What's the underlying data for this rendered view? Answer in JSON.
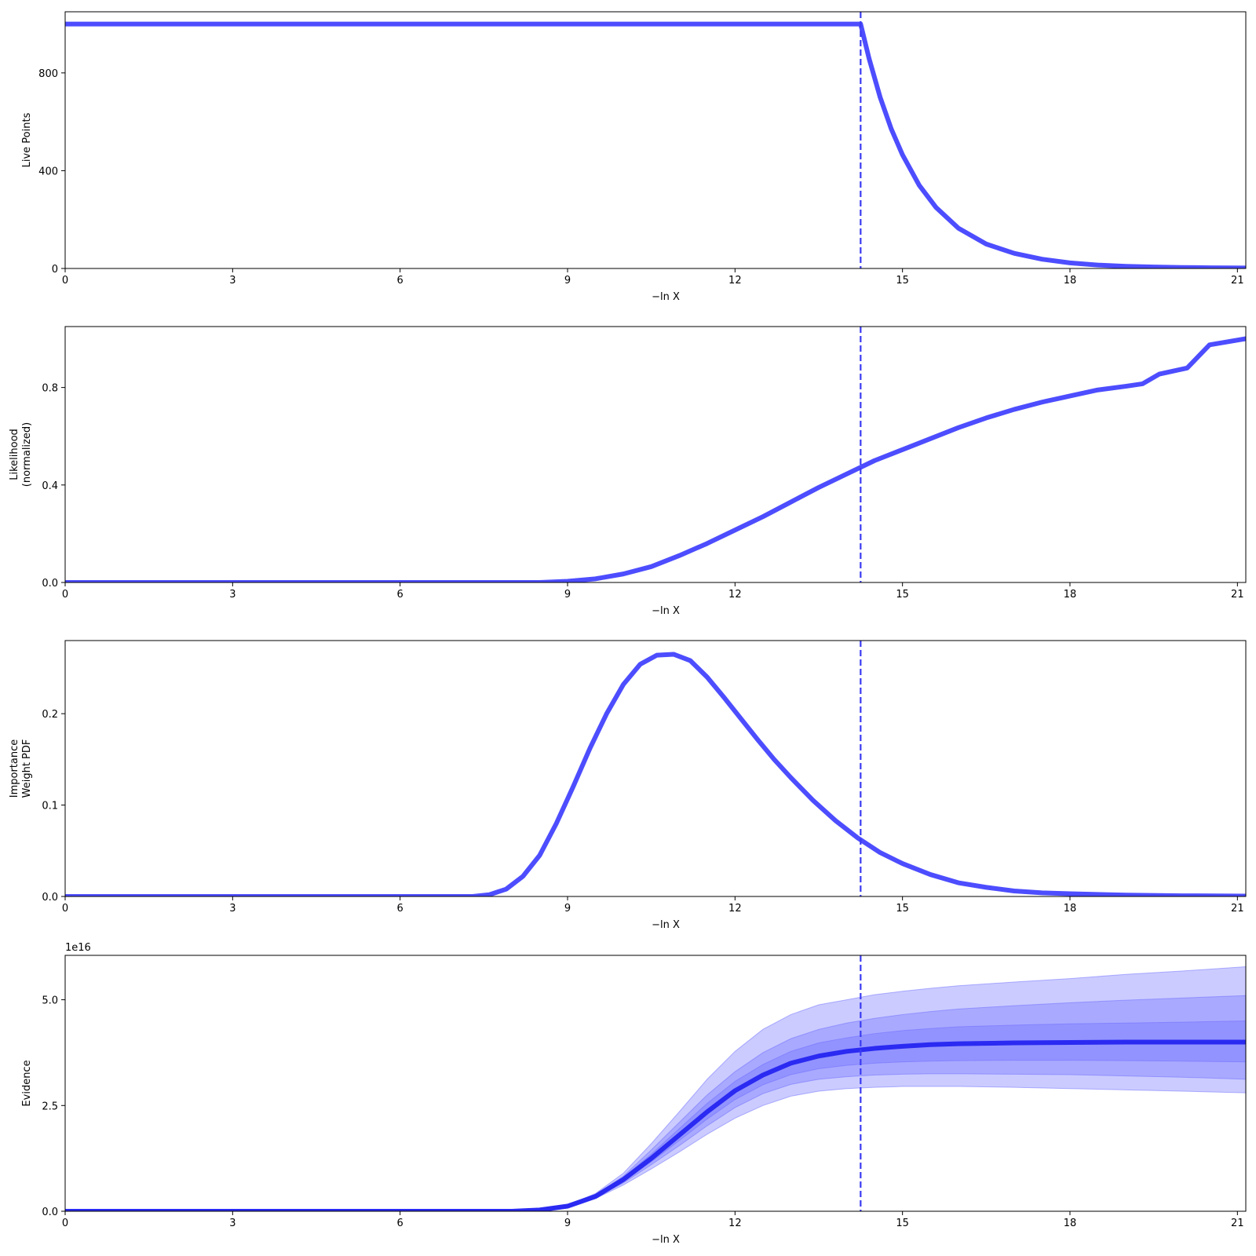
{
  "colors": {
    "line": "#4d4dff",
    "evidence_line": "#2a2af2",
    "band": "#6b6bff",
    "marker": "#3b3bf2",
    "axis": "#000000"
  },
  "marker_x": 14.25,
  "chart_data": [
    {
      "type": "line",
      "xlabel": "−ln X",
      "ylabel_lines": [
        "Live Points"
      ],
      "xlim": [
        0,
        21.15
      ],
      "ylim": [
        0,
        1050
      ],
      "xticks": [
        0,
        3,
        6,
        9,
        12,
        15,
        18,
        21
      ],
      "yticks": [
        0,
        400,
        800
      ],
      "ytick_labels": [
        "0",
        "400",
        "800"
      ],
      "offset_text": "",
      "series": [
        {
          "x": [
            0,
            14.25,
            14.4,
            14.6,
            14.8,
            15.0,
            15.3,
            15.6,
            16.0,
            16.5,
            17.0,
            17.5,
            18.0,
            18.5,
            19.0,
            19.5,
            20.0,
            20.5,
            21.15
          ],
          "y": [
            1000,
            1000,
            860,
            700,
            570,
            465,
            340,
            250,
            165,
            100,
            62,
            38,
            23,
            14,
            9,
            6,
            4,
            3,
            2
          ]
        }
      ]
    },
    {
      "type": "line",
      "xlabel": "−ln X",
      "ylabel_lines": [
        "Likelihood",
        "(normalized)"
      ],
      "xlim": [
        0,
        21.15
      ],
      "ylim": [
        0,
        1.05
      ],
      "xticks": [
        0,
        3,
        6,
        9,
        12,
        15,
        18,
        21
      ],
      "yticks": [
        0,
        0.4,
        0.8
      ],
      "ytick_labels": [
        "0.0",
        "0.4",
        "0.8"
      ],
      "offset_text": "",
      "series": [
        {
          "x": [
            0,
            8.5,
            9.0,
            9.5,
            10.0,
            10.5,
            11.0,
            11.5,
            12.0,
            12.5,
            13.0,
            13.5,
            14.0,
            14.5,
            15.0,
            15.5,
            16.0,
            16.5,
            17.0,
            17.5,
            18.0,
            18.5,
            19.0,
            19.3,
            19.6,
            20.1,
            20.5,
            21.15
          ],
          "y": [
            0,
            0,
            0.005,
            0.015,
            0.035,
            0.065,
            0.11,
            0.16,
            0.215,
            0.27,
            0.33,
            0.39,
            0.445,
            0.5,
            0.545,
            0.59,
            0.635,
            0.675,
            0.71,
            0.74,
            0.765,
            0.79,
            0.805,
            0.815,
            0.855,
            0.88,
            0.975,
            1.0
          ]
        }
      ]
    },
    {
      "type": "line",
      "xlabel": "−ln X",
      "ylabel_lines": [
        "Importance",
        "Weight PDF"
      ],
      "xlim": [
        0,
        21.15
      ],
      "ylim": [
        0,
        0.28
      ],
      "xticks": [
        0,
        3,
        6,
        9,
        12,
        15,
        18,
        21
      ],
      "yticks": [
        0,
        0.1,
        0.2
      ],
      "ytick_labels": [
        "0.0",
        "0.1",
        "0.2"
      ],
      "offset_text": "",
      "series": [
        {
          "x": [
            0,
            7.3,
            7.6,
            7.9,
            8.2,
            8.5,
            8.8,
            9.1,
            9.4,
            9.7,
            10.0,
            10.3,
            10.6,
            10.9,
            11.2,
            11.5,
            11.8,
            12.1,
            12.4,
            12.7,
            13.0,
            13.4,
            13.8,
            14.2,
            14.6,
            15.0,
            15.5,
            16.0,
            16.5,
            17.0,
            17.5,
            18.0,
            19.0,
            20.0,
            21.15
          ],
          "y": [
            0,
            0,
            0.002,
            0.008,
            0.022,
            0.045,
            0.08,
            0.12,
            0.162,
            0.2,
            0.232,
            0.254,
            0.264,
            0.265,
            0.258,
            0.24,
            0.218,
            0.195,
            0.172,
            0.15,
            0.13,
            0.105,
            0.083,
            0.064,
            0.048,
            0.036,
            0.024,
            0.015,
            0.01,
            0.006,
            0.004,
            0.003,
            0.0015,
            0.0008,
            0.0004
          ]
        }
      ]
    },
    {
      "type": "area",
      "xlabel": "−ln X",
      "ylabel_lines": [
        "Evidence"
      ],
      "xlim": [
        0,
        21.15
      ],
      "ylim": [
        0,
        6.05e+16
      ],
      "xticks": [
        0,
        3,
        6,
        9,
        12,
        15,
        18,
        21
      ],
      "yticks": [
        0,
        2.5e+16,
        5e+16
      ],
      "ytick_labels": [
        "0.0",
        "2.5",
        "5.0"
      ],
      "offset_text": "1e16",
      "x": [
        0,
        8.0,
        8.5,
        9.0,
        9.5,
        10.0,
        10.5,
        11.0,
        11.5,
        12.0,
        12.5,
        13.0,
        13.5,
        14.0,
        14.5,
        15.0,
        15.5,
        16.0,
        17.0,
        18.0,
        19.0,
        20.0,
        21.15
      ],
      "series": [
        {
          "name_role": "center",
          "y": [
            0,
            0,
            300000000000000.0,
            1200000000000000.0,
            3500000000000000.0,
            7500000000000000.0,
            1.25e+16,
            1.8e+16,
            2.35e+16,
            2.85e+16,
            3.22e+16,
            3.5e+16,
            3.67e+16,
            3.78e+16,
            3.85e+16,
            3.9e+16,
            3.94e+16,
            3.96e+16,
            3.98e+16,
            3.99e+16,
            4e+16,
            4e+16,
            4e+16
          ]
        }
      ],
      "bands": [
        {
          "lower": [
            0,
            0,
            300000000000000.0,
            1100000000000000.0,
            3000000000000000.0,
            6200000000000000.0,
            1e+16,
            1.4e+16,
            1.82e+16,
            2.2e+16,
            2.5e+16,
            2.72e+16,
            2.84e+16,
            2.9e+16,
            2.93e+16,
            2.95e+16,
            2.95e+16,
            2.95e+16,
            2.93e+16,
            2.9e+16,
            2.87e+16,
            2.84e+16,
            2.8e+16
          ],
          "upper": [
            0,
            0,
            400000000000000.0,
            1400000000000000.0,
            4200000000000000.0,
            9000000000000000.0,
            1.6e+16,
            2.35e+16,
            3.12e+16,
            3.78e+16,
            4.3e+16,
            4.65e+16,
            4.88e+16,
            5e+16,
            5.12e+16,
            5.2e+16,
            5.27e+16,
            5.33e+16,
            5.42e+16,
            5.5e+16,
            5.6e+16,
            5.68e+16,
            5.78e+16
          ]
        },
        {
          "lower": [
            0,
            0,
            300000000000000.0,
            1150000000000000.0,
            3200000000000000.0,
            6700000000000000.0,
            1.1e+16,
            1.55e+16,
            2.02e+16,
            2.45e+16,
            2.78e+16,
            3e+16,
            3.12e+16,
            3.18e+16,
            3.22e+16,
            3.24e+16,
            3.25e+16,
            3.25e+16,
            3.24e+16,
            3.23e+16,
            3.2e+16,
            3.17e+16,
            3.12e+16
          ],
          "upper": [
            0,
            0,
            350000000000000.0,
            1300000000000000.0,
            3900000000000000.0,
            8300000000000000.0,
            1.45e+16,
            2.1e+16,
            2.75e+16,
            3.3e+16,
            3.75e+16,
            4.08e+16,
            4.3e+16,
            4.45e+16,
            4.56e+16,
            4.65e+16,
            4.72e+16,
            4.78e+16,
            4.86e+16,
            4.93e+16,
            4.99e+16,
            5.04e+16,
            5.1e+16
          ]
        },
        {
          "lower": [
            0,
            0,
            300000000000000.0,
            1180000000000000.0,
            3300000000000000.0,
            7000000000000000.0,
            1.17e+16,
            1.67e+16,
            2.18e+16,
            2.64e+16,
            2.99e+16,
            3.23e+16,
            3.37e+16,
            3.45e+16,
            3.5e+16,
            3.53e+16,
            3.55e+16,
            3.56e+16,
            3.57e+16,
            3.57e+16,
            3.56e+16,
            3.55e+16,
            3.53e+16
          ],
          "upper": [
            0,
            0,
            320000000000000.0,
            1250000000000000.0,
            3700000000000000.0,
            8000000000000000.0,
            1.35e+16,
            1.95e+16,
            2.55e+16,
            3.07e+16,
            3.47e+16,
            3.78e+16,
            3.98e+16,
            4.1e+16,
            4.2e+16,
            4.27e+16,
            4.32e+16,
            4.36e+16,
            4.4e+16,
            4.43e+16,
            4.45e+16,
            4.47e+16,
            4.5e+16
          ]
        }
      ]
    }
  ]
}
